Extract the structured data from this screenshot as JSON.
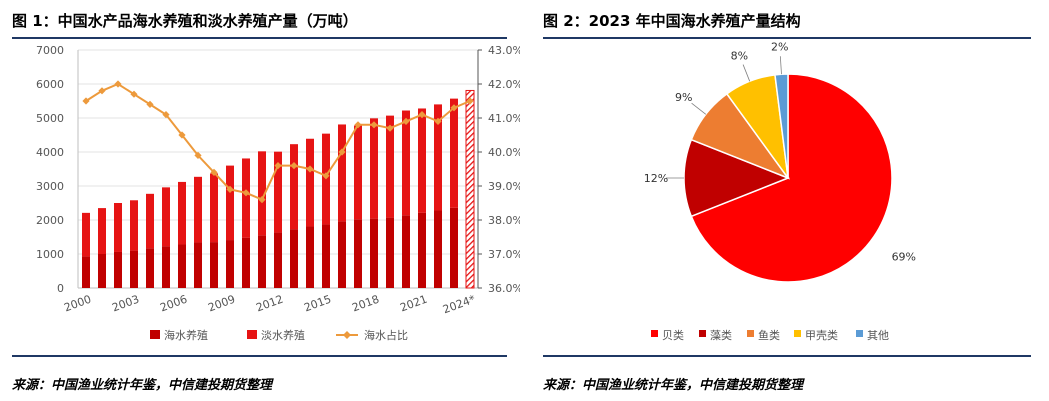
{
  "left": {
    "title": "图 1：中国水产品海水养殖和淡水养殖产量（万吨）",
    "source": "来源：中国渔业统计年鉴，中信建投期货整理"
  },
  "right": {
    "title": "图 2：2023 年中国海水养殖产量结构",
    "source": "来源：中国渔业统计年鉴，中信建投期货整理"
  },
  "chart_data": [
    {
      "type": "bar",
      "stacked": true,
      "years": [
        "2000",
        "2001",
        "2002",
        "2003",
        "2004",
        "2005",
        "2006",
        "2007",
        "2008",
        "2009",
        "2010",
        "2011",
        "2012",
        "2013",
        "2014",
        "2015",
        "2016",
        "2017",
        "2018",
        "2019",
        "2020",
        "2021",
        "2022",
        "2023",
        "2024*"
      ],
      "x_tick_labels": [
        "2000",
        "2003",
        "2006",
        "2009",
        "2012",
        "2015",
        "2018",
        "2021",
        "2024*"
      ],
      "series": [
        {
          "name": "海水养殖",
          "color": "#c00000",
          "values": [
            930,
            1000,
            1060,
            1100,
            1170,
            1230,
            1280,
            1340,
            1350,
            1410,
            1480,
            1550,
            1630,
            1730,
            1810,
            1870,
            1960,
            2020,
            2040,
            2070,
            2140,
            2210,
            2280,
            2360,
            2430
          ]
        },
        {
          "name": "淡水养殖",
          "color": "#e61414",
          "values": [
            1280,
            1350,
            1440,
            1480,
            1600,
            1730,
            1840,
            1930,
            2020,
            2190,
            2330,
            2470,
            2380,
            2500,
            2580,
            2670,
            2850,
            2760,
            2950,
            3000,
            3080,
            3070,
            3120,
            3210,
            3380
          ]
        },
        {
          "name": "海水占比",
          "color": "#ed9a3c",
          "axis": "right",
          "values": [
            41.5,
            41.8,
            42.0,
            41.7,
            41.4,
            41.1,
            40.5,
            39.9,
            39.4,
            38.9,
            38.8,
            38.6,
            39.6,
            39.6,
            39.5,
            39.3,
            40.0,
            40.8,
            40.8,
            40.7,
            40.9,
            41.1,
            40.9,
            41.3,
            41.5
          ]
        }
      ],
      "yleft": {
        "ticks": [
          "0",
          "1000",
          "2000",
          "3000",
          "4000",
          "5000",
          "6000",
          "7000"
        ],
        "ylim": [
          0,
          7000
        ]
      },
      "yright": {
        "ticks": [
          "36.0%",
          "37.0%",
          "38.0%",
          "39.0%",
          "40.0%",
          "41.0%",
          "42.0%",
          "43.0%"
        ],
        "ylim": [
          36,
          43
        ]
      },
      "legend": [
        "海水养殖",
        "淡水养殖",
        "海水占比"
      ]
    },
    {
      "type": "pie",
      "slices": [
        {
          "name": "贝类",
          "value": 69,
          "label": "69%",
          "color": "#ff0000"
        },
        {
          "name": "藻类",
          "value": 12,
          "label": "12%",
          "color": "#c00000"
        },
        {
          "name": "鱼类",
          "value": 9,
          "label": "9%",
          "color": "#ed7d31"
        },
        {
          "name": "甲壳类",
          "value": 8,
          "label": "8%",
          "color": "#ffc000"
        },
        {
          "name": "其他",
          "value": 2,
          "label": "2%",
          "color": "#5b9bd5"
        }
      ],
      "legend": [
        "贝类",
        "藻类",
        "鱼类",
        "甲壳类",
        "其他"
      ]
    }
  ]
}
